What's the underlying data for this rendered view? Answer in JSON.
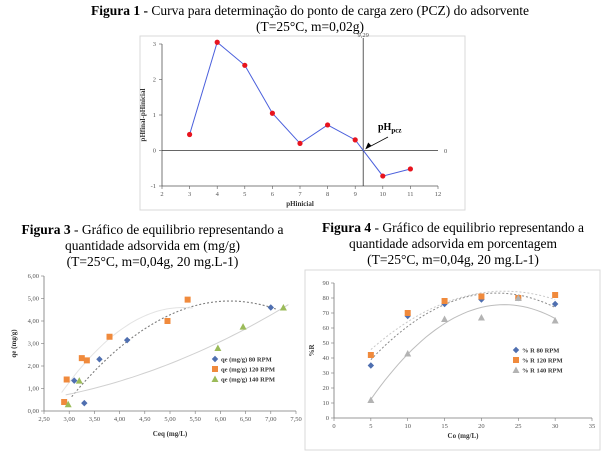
{
  "captions": {
    "fig1": {
      "label": "Figura 1 -",
      "line1": " Curva para determinação do ponto de carga zero (PCZ) do adsorvente",
      "line2": "(T=25°C, m=0,02g)"
    },
    "fig3": {
      "label": "Figura 3",
      "line1": " - Gráfico de equilibrio  representando a",
      "line2": "quantidade  adsorvida em (mg/g)",
      "line3": "(T=25°C, m=0,04g,  20 mg.L-1)"
    },
    "fig4": {
      "label": "Figura 4",
      "line1": " - Gráfico de equilibrio  representando a",
      "line2": "quantidade  adsorvida em porcentagem",
      "line3": "(T=25°C, m=0,04g,  20 mg.L-1)"
    }
  },
  "colors": {
    "line": "#4a5fdc",
    "marker": "#e8141e",
    "blue": "#4f6fb0",
    "orange": "#f08a3c",
    "green": "#9bbb59",
    "grey": "#b3b3b3"
  },
  "chart_data": [
    {
      "type": "line",
      "xlabel": "pHinicial",
      "ylabel": "pHfinal-pHinicial",
      "xlim": [
        2,
        12
      ],
      "ylim": [
        -1,
        3
      ],
      "xticks": [
        2,
        3,
        4,
        5,
        6,
        7,
        8,
        9,
        10,
        11,
        12
      ],
      "yticks": [
        -1,
        0,
        1,
        2,
        3
      ],
      "x": [
        3,
        4,
        5,
        6,
        7,
        8,
        9,
        10,
        11
      ],
      "y": [
        0.45,
        3.05,
        2.4,
        1.05,
        0.2,
        0.72,
        0.3,
        -0.72,
        -0.52
      ],
      "vline": 9.29,
      "vline_label": "9,29",
      "hline_label": "0",
      "annotation": {
        "text": "pH",
        "sub": "pcz"
      },
      "grid": false
    },
    {
      "type": "scatter",
      "xlabel": "Ceq (mg/L)",
      "ylabel": "qe (mg/g)",
      "xlim": [
        2.5,
        7.5
      ],
      "ylim": [
        0,
        6
      ],
      "xticks": [
        "2,50",
        "3,00",
        "3,50",
        "4,00",
        "4,50",
        "5,00",
        "5,50",
        "6,00",
        "6,50",
        "7,00",
        "7,50"
      ],
      "yticks": [
        "0,00",
        "1,00",
        "2,00",
        "3,00",
        "4,00",
        "5,00",
        "6,00"
      ],
      "series": [
        {
          "name": "qe (mg/g) 80 RPM",
          "color": "blue",
          "marker": "diamond",
          "x": [
            3.1,
            3.3,
            3.6,
            4.15,
            7.0
          ],
          "y": [
            1.35,
            0.35,
            2.3,
            3.15,
            4.6
          ]
        },
        {
          "name": "qe (mg/g) 120 RPM",
          "color": "orange",
          "marker": "square",
          "x": [
            2.9,
            2.95,
            3.25,
            3.35,
            3.8,
            4.95,
            5.35
          ],
          "y": [
            0.4,
            1.4,
            2.35,
            2.25,
            3.3,
            4.0,
            4.95
          ]
        },
        {
          "name": "qe (mg/g) 140 RPM",
          "color": "green",
          "marker": "triangle",
          "x": [
            2.98,
            3.2,
            5.95,
            6.45,
            7.25
          ],
          "y": [
            0.3,
            1.35,
            2.8,
            3.75,
            4.6
          ]
        }
      ],
      "legend": "center-right",
      "grid": false
    },
    {
      "type": "scatter",
      "xlabel": "Co (mg/L)",
      "ylabel": "%R",
      "xlim": [
        0,
        35
      ],
      "ylim": [
        0,
        90
      ],
      "xticks": [
        0,
        5,
        10,
        15,
        20,
        25,
        30,
        35
      ],
      "yticks": [
        0,
        10,
        20,
        30,
        40,
        50,
        60,
        70,
        80,
        90
      ],
      "series": [
        {
          "name": "% R 80 RPM",
          "color": "blue",
          "marker": "diamond",
          "x": [
            5,
            10,
            15,
            20,
            25,
            30
          ],
          "y": [
            35,
            68,
            76,
            79,
            80,
            76
          ]
        },
        {
          "name": "% R 120 RPM",
          "color": "orange",
          "marker": "square",
          "x": [
            5,
            10,
            15,
            20,
            25,
            30
          ],
          "y": [
            42,
            70,
            78,
            81,
            80,
            82
          ]
        },
        {
          "name": "% R 140 RPM",
          "color": "grey",
          "marker": "triangle",
          "x": [
            5,
            10,
            15,
            20,
            25,
            30
          ],
          "y": [
            12,
            43,
            66,
            67,
            80,
            65
          ]
        }
      ],
      "legend": "center-right",
      "grid": false
    }
  ]
}
